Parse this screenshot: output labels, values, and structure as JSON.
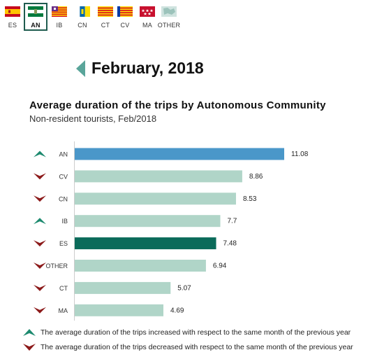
{
  "flags": [
    {
      "code": "ES",
      "icon": "spain-flag-icon",
      "selected": false
    },
    {
      "code": "AN",
      "icon": "andalusia-flag-icon",
      "selected": true
    },
    {
      "code": "IB",
      "icon": "balearic-islands-flag-icon",
      "selected": false
    },
    {
      "code": "CN",
      "icon": "canary-islands-flag-icon",
      "selected": false
    },
    {
      "code": "CT",
      "icon": "catalonia-flag-icon",
      "selected": false
    },
    {
      "code": "CV",
      "icon": "valencian-community-flag-icon",
      "selected": false
    },
    {
      "code": "MA",
      "icon": "madrid-flag-icon",
      "selected": false
    },
    {
      "code": "OTHER",
      "icon": "other-regions-icon",
      "selected": false
    }
  ],
  "header": {
    "month": "February, 2018",
    "back_icon": "triangle-left-icon"
  },
  "chart_data": {
    "type": "bar",
    "orientation": "horizontal",
    "title": "Average duration of the trips by Autonomous Community",
    "subtitle": "Non-resident tourists, Feb/2018",
    "categories": [
      "AN",
      "CV",
      "CN",
      "IB",
      "ES",
      "OTHER",
      "CT",
      "MA"
    ],
    "values": [
      11.08,
      8.86,
      8.53,
      7.7,
      7.48,
      6.94,
      5.07,
      4.69
    ],
    "value_labels": [
      "11.08",
      "8.86",
      "8.53",
      "7.7",
      "7.48",
      "6.94",
      "5.07",
      "4.69"
    ],
    "trend": [
      "up",
      "down",
      "down",
      "up",
      "down",
      "down",
      "down",
      "down"
    ],
    "bar_colors": [
      "#4a97c9",
      "#b0d5c8",
      "#b0d5c8",
      "#b0d5c8",
      "#0b6b5a",
      "#b0d5c8",
      "#b0d5c8",
      "#b0d5c8"
    ],
    "xlim": [
      0,
      12
    ],
    "grid": false
  },
  "legend": {
    "up_text": "The average duration of the trips increased with respect to the same month of the previous year",
    "down_text": "The average duration of the trips decreased with respect to the same month of the previous year"
  },
  "colors": {
    "up_arrow": "#1d8a6f",
    "down_arrow": "#8c1a1a",
    "selected_border": "#1f5c4f",
    "back_arrow": "#5aa59a"
  }
}
